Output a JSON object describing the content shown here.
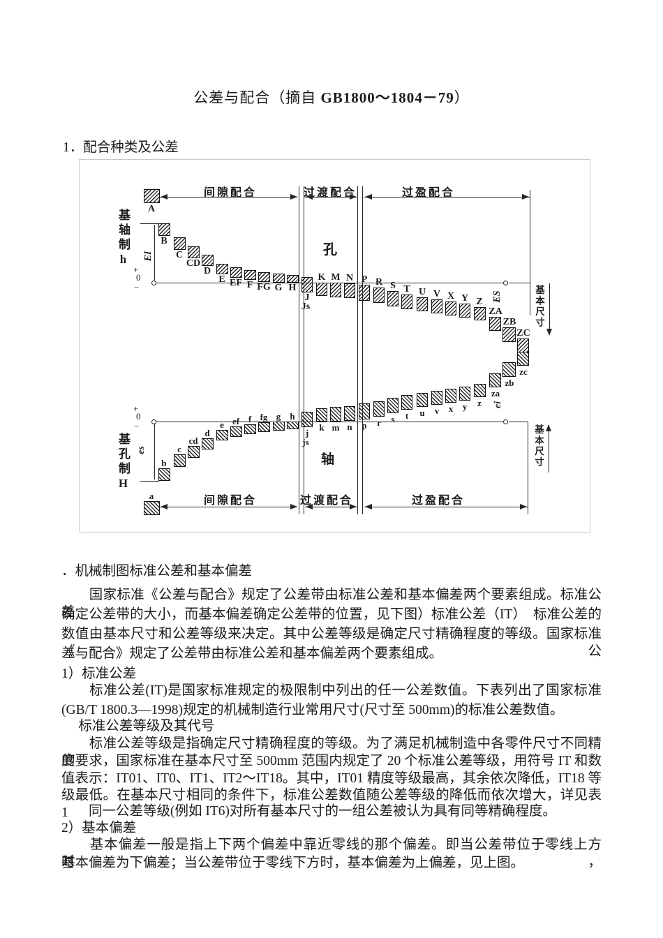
{
  "doc": {
    "title": {
      "prefix": "公差与配合（摘自 ",
      "code": "GB1800～1804－79",
      "suffix": "）"
    },
    "section1_heading": "1．配合种类及公差",
    "sectionA_heading": "．机械制图标准公差和基本偏差",
    "para1_lines": [
      "　　国家标准《公差与配合》规定了公差带由标准公差和基本偏差两个要素组成。标准公差",
      "确定公差带的大小，而基本偏差确定公差带的位置，见下图）标准公差（IT）　标准公差的",
      "数值由基本尺寸和公差等级来决定。其中公差等级是确定尺寸精确程度的等级。国家标准《公",
      "差与配合》规定了公差带由标准公差和基本偏差两个要素组成。"
    ],
    "sub1_heading": "1）标准公差",
    "para2_lines": [
      "　　标准公差(IT)是国家标准规定的极限制中列出的任一公差数值。下表列出了国家标准",
      "(GB/T 1800.3—1998)规定的机械制造行业常用尺寸(尺寸至 500mm)的标准公差数值。"
    ],
    "tol_grade_caption": "　 标准公差等级及其代号",
    "para3_lines": [
      "　　标准公差等级是指确定尺寸精确程度的等级。为了满足机械制造中各零件尺寸不同精度",
      "的要求，国家标准在基本尺寸至 500mm 范围内规定了 20 个标准公差等级，用符号 IT 和数",
      "值表示：IT01、IT0、IT1、IT2～IT18。其中，IT01 精度等级最高，其余依次降低，IT18 等",
      "级最低。在基本尺寸相同的条件下，标准公差数值随公差等级的降低而依次增大，详见表 1",
      "　　同一公差等级(例如 IT6)对所有基本尺寸的一组公差被认为具有同等精确程度。"
    ],
    "sub2_heading": "2）基本偏差",
    "para4_lines": [
      "　　基本偏差一般是指上下两个偏差中靠近零线的那个偏差。即当公差带位于零线上方时，",
      "基本偏差为下偏差；当公差带位于零线下方时，基本偏差为上偏差，见上图。"
    ]
  },
  "diagram": {
    "fit_top": [
      "间隙配合",
      "过渡配合",
      "过盈配合"
    ],
    "fit_bottom": [
      "间隙配合",
      "过渡配合",
      "过盈配合"
    ],
    "basic_shaft_system": "基轴制h",
    "basic_hole_system": "基孔制H",
    "hole_char": "孔",
    "shaft_char": "轴",
    "dev_top_left": "EI",
    "dev_top_right": "ES",
    "dev_bottom_left": "es",
    "dev_bottom_right": "ei",
    "basic_size_top": "基本尺寸",
    "basic_size_bottom": "基本尺寸",
    "axis_plus": "+",
    "axis_zero": "0",
    "axis_minus": "−",
    "hole_zones": [
      "A",
      "B",
      "C",
      "CD",
      "D",
      "E",
      "EF",
      "F",
      "FG",
      "G",
      "H",
      "J",
      "Js",
      "K",
      "M",
      "N",
      "P",
      "R",
      "S",
      "T",
      "U",
      "V",
      "X",
      "Y",
      "Z",
      "ZA",
      "ZB",
      "ZC"
    ],
    "shaft_zones": [
      "a",
      "b",
      "c",
      "cd",
      "d",
      "e",
      "ef",
      "f",
      "fg",
      "g",
      "h",
      "j",
      "js",
      "k",
      "m",
      "n",
      "p",
      "r",
      "s",
      "t",
      "u",
      "v",
      "x",
      "y",
      "z",
      "za",
      "zb",
      "zc"
    ]
  },
  "colors": {
    "ink": "#1c1c1c",
    "figure_border": "#c9c9c9"
  }
}
